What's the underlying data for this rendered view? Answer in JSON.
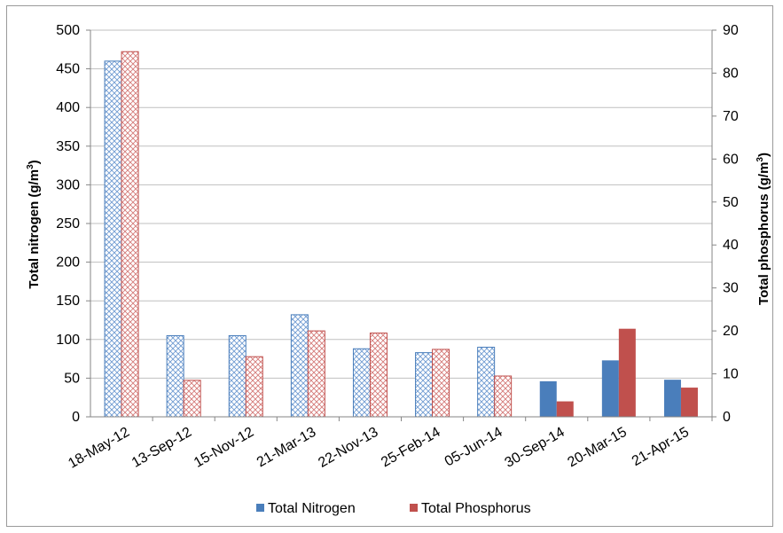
{
  "chart_data": {
    "type": "bar",
    "categories": [
      "18-May-12",
      "13-Sep-12",
      "15-Nov-12",
      "21-Mar-13",
      "22-Nov-13",
      "25-Feb-14",
      "05-Jun-14",
      "30-Sep-14",
      "20-Mar-15",
      "21-Apr-15"
    ],
    "series": [
      {
        "name": "Total Nitrogen",
        "axis": "left",
        "color": "#4a7ebb",
        "values": [
          460,
          105,
          105,
          132,
          88,
          83,
          90,
          46,
          73,
          48
        ],
        "fill_styles": [
          "hatched",
          "hatched",
          "hatched",
          "hatched",
          "hatched",
          "hatched",
          "hatched",
          "solid",
          "solid",
          "solid"
        ]
      },
      {
        "name": "Total Phosphorus",
        "axis": "right",
        "color": "#c0504d",
        "values": [
          85,
          8.5,
          14,
          20,
          19.5,
          15.7,
          9.5,
          3.6,
          20.5,
          6.8
        ],
        "fill_styles": [
          "hatched",
          "hatched",
          "hatched",
          "hatched",
          "hatched",
          "hatched",
          "hatched",
          "solid",
          "solid",
          "solid"
        ]
      }
    ],
    "y_left": {
      "label_main": "Total nitrogen  (g/m",
      "label_sup": "3",
      "label_end": ")",
      "ylim": [
        0,
        500
      ],
      "ticks": [
        "0",
        "50",
        "100",
        "150",
        "200",
        "250",
        "300",
        "350",
        "400",
        "450",
        "500"
      ]
    },
    "y_right": {
      "label_main": "Total phosphorus  (g/m",
      "label_sup": "3",
      "label_end": ")",
      "ylim": [
        0,
        90
      ],
      "ticks": [
        "0",
        "10",
        "20",
        "30",
        "40",
        "50",
        "60",
        "70",
        "80",
        "90"
      ]
    },
    "grid": true,
    "legend_position": "bottom",
    "legend": [
      {
        "label": "Total Nitrogen",
        "color": "#4a7ebb"
      },
      {
        "label": "Total Phosphorus",
        "color": "#c0504d"
      }
    ]
  }
}
